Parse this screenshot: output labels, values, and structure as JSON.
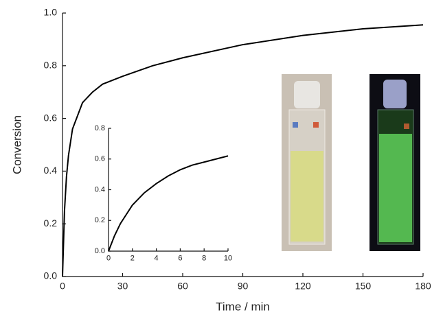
{
  "chart_data": [
    {
      "type": "line",
      "x_label": "Time / min",
      "y_label": "Conversion",
      "x": [
        0,
        1,
        2,
        3,
        5,
        10,
        15,
        20,
        30,
        45,
        60,
        90,
        120,
        150,
        180
      ],
      "series": [
        {
          "color": "#000000",
          "values": [
            0,
            0.25,
            0.38,
            0.46,
            0.56,
            0.66,
            0.7,
            0.73,
            0.76,
            0.8,
            0.83,
            0.88,
            0.915,
            0.94,
            0.955
          ]
        }
      ],
      "xlim": [
        0,
        180
      ],
      "xticks": [
        0,
        30,
        60,
        90,
        120,
        150,
        180
      ],
      "ylim": [
        0,
        1
      ],
      "yticks": [
        {
          "value": 0,
          "label": "0.0"
        },
        0.2,
        0.4,
        0.6,
        0.8,
        {
          "value": 1,
          "label": "1.0"
        }
      ]
    },
    {
      "type": "line",
      "x": [
        0,
        0.5,
        1,
        2,
        3,
        4,
        5,
        6,
        7,
        8,
        9,
        10
      ],
      "series": [
        {
          "color": "#000000",
          "values": [
            0,
            0.1,
            0.18,
            0.3,
            0.38,
            0.44,
            0.49,
            0.53,
            0.56,
            0.58,
            0.6,
            0.62
          ]
        }
      ],
      "xlim": [
        0,
        10
      ],
      "xticks": [
        0,
        2,
        4,
        6,
        8,
        10
      ],
      "ylim": [
        0,
        0.8
      ],
      "yticks": [
        {
          "value": 0,
          "label": "0.0"
        },
        0.2,
        0.4,
        0.6,
        0.8
      ]
    }
  ]
}
